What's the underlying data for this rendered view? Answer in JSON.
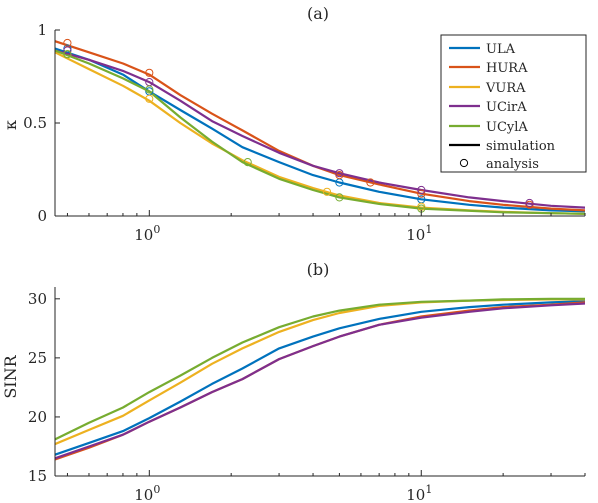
{
  "chart_data": [
    {
      "type": "line",
      "title": "(a)",
      "xlabel": "",
      "ylabel": "κ",
      "xscale": "log",
      "xlim": [
        0.45,
        40
      ],
      "ylim": [
        0,
        1
      ],
      "xticks": [
        {
          "value": 1,
          "base": "10",
          "exp": "0"
        },
        {
          "value": 10,
          "base": "10",
          "exp": "1"
        }
      ],
      "yticks": [
        {
          "value": 0,
          "label": "0"
        },
        {
          "value": 0.5,
          "label": "0.5"
        },
        {
          "value": 1,
          "label": "1"
        }
      ],
      "legend_position": "top-right",
      "legend": [
        {
          "label": "ULA",
          "color": "#0072BD",
          "kind": "line"
        },
        {
          "label": "HURA",
          "color": "#D95319",
          "kind": "line"
        },
        {
          "label": "VURA",
          "color": "#EDB120",
          "kind": "line"
        },
        {
          "label": "UCirA",
          "color": "#7E2F8E",
          "kind": "line"
        },
        {
          "label": "UCylA",
          "color": "#77AC30",
          "kind": "line"
        },
        {
          "label": "simulation",
          "color": "#000000",
          "kind": "line"
        },
        {
          "label": "analysis",
          "color": "#000000",
          "kind": "marker"
        }
      ],
      "series": [
        {
          "name": "ULA",
          "color": "#0072BD",
          "x": [
            0.45,
            0.6,
            0.8,
            1.0,
            1.3,
            1.7,
            2.2,
            3.0,
            4.0,
            5.0,
            7.0,
            10,
            15,
            20,
            30,
            40
          ],
          "y": [
            0.9,
            0.84,
            0.76,
            0.67,
            0.57,
            0.47,
            0.37,
            0.29,
            0.22,
            0.18,
            0.13,
            0.09,
            0.06,
            0.045,
            0.03,
            0.025
          ],
          "markers_x": [
            0.5,
            1.0,
            5.0,
            10
          ],
          "markers_y": [
            0.9,
            0.67,
            0.18,
            0.09
          ]
        },
        {
          "name": "HURA",
          "color": "#D95319",
          "x": [
            0.45,
            0.6,
            0.8,
            1.0,
            1.3,
            1.7,
            2.2,
            3.0,
            4.0,
            5.0,
            7.0,
            10,
            15,
            20,
            30,
            40
          ],
          "y": [
            0.94,
            0.88,
            0.82,
            0.76,
            0.65,
            0.55,
            0.46,
            0.35,
            0.27,
            0.22,
            0.17,
            0.12,
            0.08,
            0.06,
            0.04,
            0.03
          ],
          "markers_x": [
            0.5,
            1.0,
            5.0,
            6.5,
            10,
            25
          ],
          "markers_y": [
            0.93,
            0.77,
            0.22,
            0.18,
            0.12,
            0.06
          ]
        },
        {
          "name": "VURA",
          "color": "#EDB120",
          "x": [
            0.45,
            0.6,
            0.8,
            1.0,
            1.3,
            1.7,
            2.2,
            3.0,
            4.0,
            5.0,
            7.0,
            10,
            15,
            20,
            30,
            40
          ],
          "y": [
            0.88,
            0.79,
            0.7,
            0.62,
            0.5,
            0.39,
            0.3,
            0.21,
            0.15,
            0.11,
            0.07,
            0.045,
            0.03,
            0.022,
            0.015,
            0.012
          ],
          "markers_x": [
            0.5,
            1.0,
            4.5,
            10
          ],
          "markers_y": [
            0.87,
            0.63,
            0.13,
            0.05
          ]
        },
        {
          "name": "UCirA",
          "color": "#7E2F8E",
          "x": [
            0.45,
            0.6,
            0.8,
            1.0,
            1.3,
            1.7,
            2.2,
            3.0,
            4.0,
            5.0,
            7.0,
            10,
            15,
            20,
            30,
            40
          ],
          "y": [
            0.89,
            0.84,
            0.78,
            0.72,
            0.62,
            0.51,
            0.43,
            0.34,
            0.27,
            0.23,
            0.18,
            0.14,
            0.1,
            0.08,
            0.055,
            0.045
          ],
          "markers_x": [
            0.5,
            1.0,
            5.0,
            10,
            25
          ],
          "markers_y": [
            0.89,
            0.72,
            0.23,
            0.14,
            0.07
          ]
        },
        {
          "name": "UCylA",
          "color": "#77AC30",
          "x": [
            0.45,
            0.6,
            0.8,
            1.0,
            1.3,
            1.7,
            2.2,
            3.0,
            4.0,
            5.0,
            7.0,
            10,
            15,
            20,
            30,
            40
          ],
          "y": [
            0.89,
            0.82,
            0.74,
            0.67,
            0.53,
            0.4,
            0.29,
            0.2,
            0.14,
            0.1,
            0.065,
            0.04,
            0.028,
            0.02,
            0.015,
            0.012
          ],
          "markers_x": [
            0.5,
            1.0,
            2.3,
            5.0,
            10
          ],
          "markers_y": [
            0.87,
            0.68,
            0.29,
            0.1,
            0.04
          ]
        }
      ]
    },
    {
      "type": "line",
      "title": "(b)",
      "xlabel": "",
      "ylabel": "SINR",
      "xscale": "log",
      "xlim": [
        0.45,
        40
      ],
      "ylim": [
        15,
        31
      ],
      "xticks": [
        {
          "value": 1,
          "base": "10",
          "exp": "0"
        },
        {
          "value": 10,
          "base": "10",
          "exp": "1"
        }
      ],
      "yticks": [
        {
          "value": 15,
          "label": "15"
        },
        {
          "value": 20,
          "label": "20"
        },
        {
          "value": 25,
          "label": "25"
        },
        {
          "value": 30,
          "label": "30"
        }
      ],
      "series": [
        {
          "name": "ULA",
          "color": "#0072BD",
          "x": [
            0.45,
            0.6,
            0.8,
            1.0,
            1.3,
            1.7,
            2.2,
            3.0,
            4.0,
            5.0,
            7.0,
            10,
            15,
            20,
            30,
            40
          ],
          "y": [
            16.8,
            17.8,
            18.8,
            19.9,
            21.3,
            22.8,
            24.1,
            25.8,
            26.8,
            27.5,
            28.3,
            28.9,
            29.3,
            29.5,
            29.7,
            29.8
          ]
        },
        {
          "name": "HURA",
          "color": "#D95319",
          "x": [
            0.45,
            0.6,
            0.8,
            1.0,
            1.3,
            1.7,
            2.2,
            3.0,
            4.0,
            5.0,
            7.0,
            10,
            15,
            20,
            30,
            40
          ],
          "y": [
            16.4,
            17.4,
            18.5,
            19.6,
            20.8,
            22.1,
            23.2,
            24.9,
            26.0,
            26.8,
            27.8,
            28.5,
            29.0,
            29.3,
            29.5,
            29.7
          ]
        },
        {
          "name": "VURA",
          "color": "#EDB120",
          "x": [
            0.45,
            0.6,
            0.8,
            1.0,
            1.3,
            1.7,
            2.2,
            3.0,
            4.0,
            5.0,
            7.0,
            10,
            15,
            20,
            30,
            40
          ],
          "y": [
            17.7,
            18.9,
            20.1,
            21.4,
            22.9,
            24.5,
            25.8,
            27.2,
            28.2,
            28.8,
            29.4,
            29.7,
            29.85,
            29.9,
            29.95,
            29.95
          ]
        },
        {
          "name": "UCirA",
          "color": "#7E2F8E",
          "x": [
            0.45,
            0.6,
            0.8,
            1.0,
            1.3,
            1.7,
            2.2,
            3.0,
            4.0,
            5.0,
            7.0,
            10,
            15,
            20,
            30,
            40
          ],
          "y": [
            16.5,
            17.5,
            18.5,
            19.6,
            20.8,
            22.1,
            23.2,
            24.9,
            26.0,
            26.8,
            27.8,
            28.4,
            28.9,
            29.2,
            29.45,
            29.6
          ]
        },
        {
          "name": "UCylA",
          "color": "#77AC30",
          "x": [
            0.45,
            0.6,
            0.8,
            1.0,
            1.3,
            1.7,
            2.2,
            3.0,
            4.0,
            5.0,
            7.0,
            10,
            15,
            20,
            30,
            40
          ],
          "y": [
            18.1,
            19.5,
            20.8,
            22.1,
            23.5,
            25.0,
            26.3,
            27.6,
            28.5,
            29.0,
            29.5,
            29.75,
            29.85,
            29.95,
            30.0,
            30.0
          ]
        }
      ]
    }
  ]
}
